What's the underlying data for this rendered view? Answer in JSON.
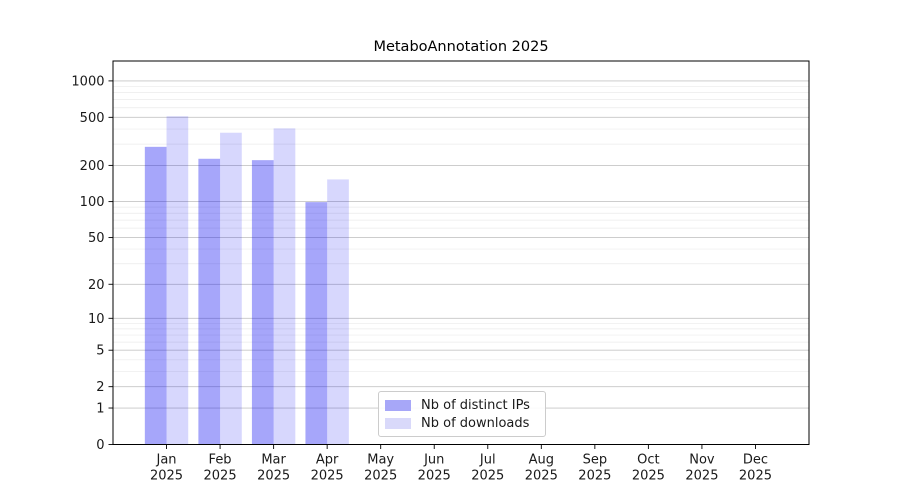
{
  "title": "MetaboAnnotation 2025",
  "legend": {
    "items": [
      {
        "label": "Nb of distinct IPs",
        "color": "#a7a7f8"
      },
      {
        "label": "Nb of downloads",
        "color": "#d9d9fa"
      }
    ]
  },
  "chart_data": {
    "type": "bar",
    "title": "MetaboAnnotation 2025",
    "categories": [
      "Jan",
      "Feb",
      "Mar",
      "Apr",
      "May",
      "Jun",
      "Jul",
      "Aug",
      "Sep",
      "Oct",
      "Nov",
      "Dec"
    ],
    "year": "2025",
    "series": [
      {
        "name": "Nb of distinct IPs",
        "fill": "rgba(0,0,240,0.35)",
        "values": [
          285,
          227,
          221,
          99,
          0,
          0,
          0,
          0,
          0,
          0,
          0,
          0
        ]
      },
      {
        "name": "Nb of downloads",
        "fill": "rgba(0,0,240,0.155)",
        "values": [
          510,
          373,
          405,
          153,
          0,
          0,
          0,
          0,
          0,
          0,
          0,
          0
        ]
      }
    ],
    "yscale": "log1p",
    "ylim": [
      0,
      1460
    ],
    "yticks": [
      0,
      1,
      2,
      5,
      10,
      20,
      50,
      100,
      200,
      500,
      1000
    ],
    "minor_gridlines": [
      3,
      4,
      6,
      7,
      8,
      9,
      30,
      40,
      60,
      70,
      80,
      90,
      300,
      400,
      600,
      700,
      800,
      900
    ],
    "grid": true,
    "legend_position": "lower center-left",
    "colors": {
      "major_grid": "#c6c6c6",
      "minor_grid": "#ebebeb",
      "spine": "#000000",
      "tick_text": "#1a1a1a",
      "background": "#ffffff"
    }
  }
}
